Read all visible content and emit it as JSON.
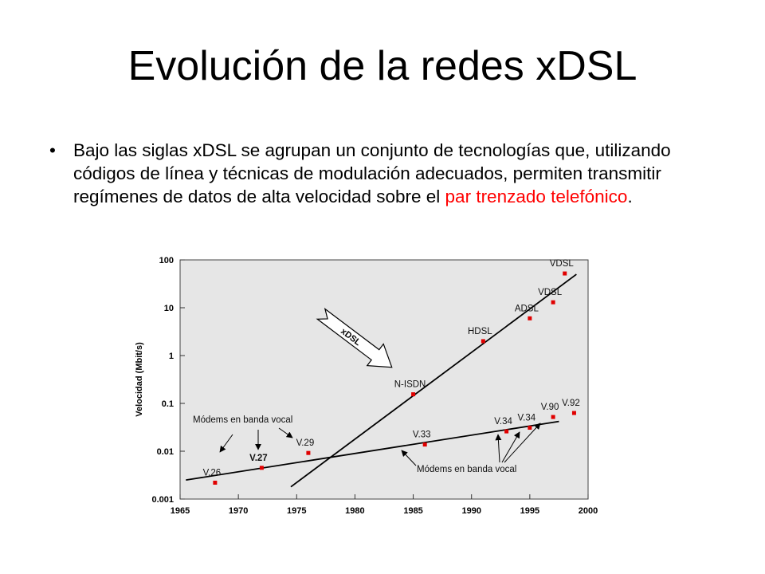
{
  "slide": {
    "title": "Evolución de la redes xDSL",
    "bullet": "•",
    "body_text": "Bajo las siglas xDSL se agrupan un conjunto de tecnologías que, utilizando códigos de línea y técnicas de modulación adecuados, permiten transmitir regímenes de datos de alta velocidad sobre el ",
    "body_highlight": "par trenzado telefónico",
    "body_end": ".",
    "highlight_color": "#ff0000"
  },
  "chart_data": {
    "type": "scatter",
    "title": "",
    "xlabel": "",
    "ylabel": "Velocidad (Mbit/s)",
    "xlim": [
      1965,
      2000
    ],
    "ylim": [
      0.001,
      100
    ],
    "yscale": "log",
    "grid": false,
    "background_color": "#e6e6e6",
    "point_color": "#e00000",
    "x_ticks": [
      1965,
      1970,
      1975,
      1980,
      1985,
      1990,
      1995,
      2000
    ],
    "y_ticks": [
      {
        "value": 100,
        "label": "100"
      },
      {
        "value": 10,
        "label": "10"
      },
      {
        "value": 1,
        "label": "1"
      },
      {
        "value": 0.1,
        "label": "0.1"
      },
      {
        "value": 0.01,
        "label": "0.01"
      },
      {
        "value": 0.001,
        "label": "0.001"
      }
    ],
    "points": [
      {
        "label": "V.26",
        "x": 1968,
        "y": 0.0022
      },
      {
        "label": "V.27",
        "x": 1972,
        "y": 0.0045
      },
      {
        "label": "V.29",
        "x": 1976,
        "y": 0.0092
      },
      {
        "label": "V.33",
        "x": 1986,
        "y": 0.0138
      },
      {
        "label": "V.34",
        "x": 1993,
        "y": 0.026
      },
      {
        "label": "V.34",
        "x": 1995,
        "y": 0.031
      },
      {
        "label": "V.90",
        "x": 1997,
        "y": 0.052
      },
      {
        "label": "V.92",
        "x": 1998.8,
        "y": 0.063
      },
      {
        "label": "N-ISDN",
        "x": 1985,
        "y": 0.155
      },
      {
        "label": "HDSL",
        "x": 1991,
        "y": 2.0
      },
      {
        "label": "ADSL",
        "x": 1995,
        "y": 6.0
      },
      {
        "label": "VDSL",
        "x": 1997,
        "y": 13.0
      },
      {
        "label": "VDSL",
        "x": 1998,
        "y": 52.0
      }
    ],
    "trend_lines": [
      {
        "name": "xDSL",
        "from": [
          1974.5,
          0.0018
        ],
        "to": [
          1999,
          50
        ]
      },
      {
        "name": "",
        "from": [
          1965.5,
          0.0025
        ],
        "to": [
          1997.5,
          0.042
        ]
      }
    ],
    "annotations": {
      "xdsl_arrow": "xDSL",
      "voiceband_left": "Módems en banda vocal",
      "voiceband_right": "Módems en banda vocal"
    }
  }
}
